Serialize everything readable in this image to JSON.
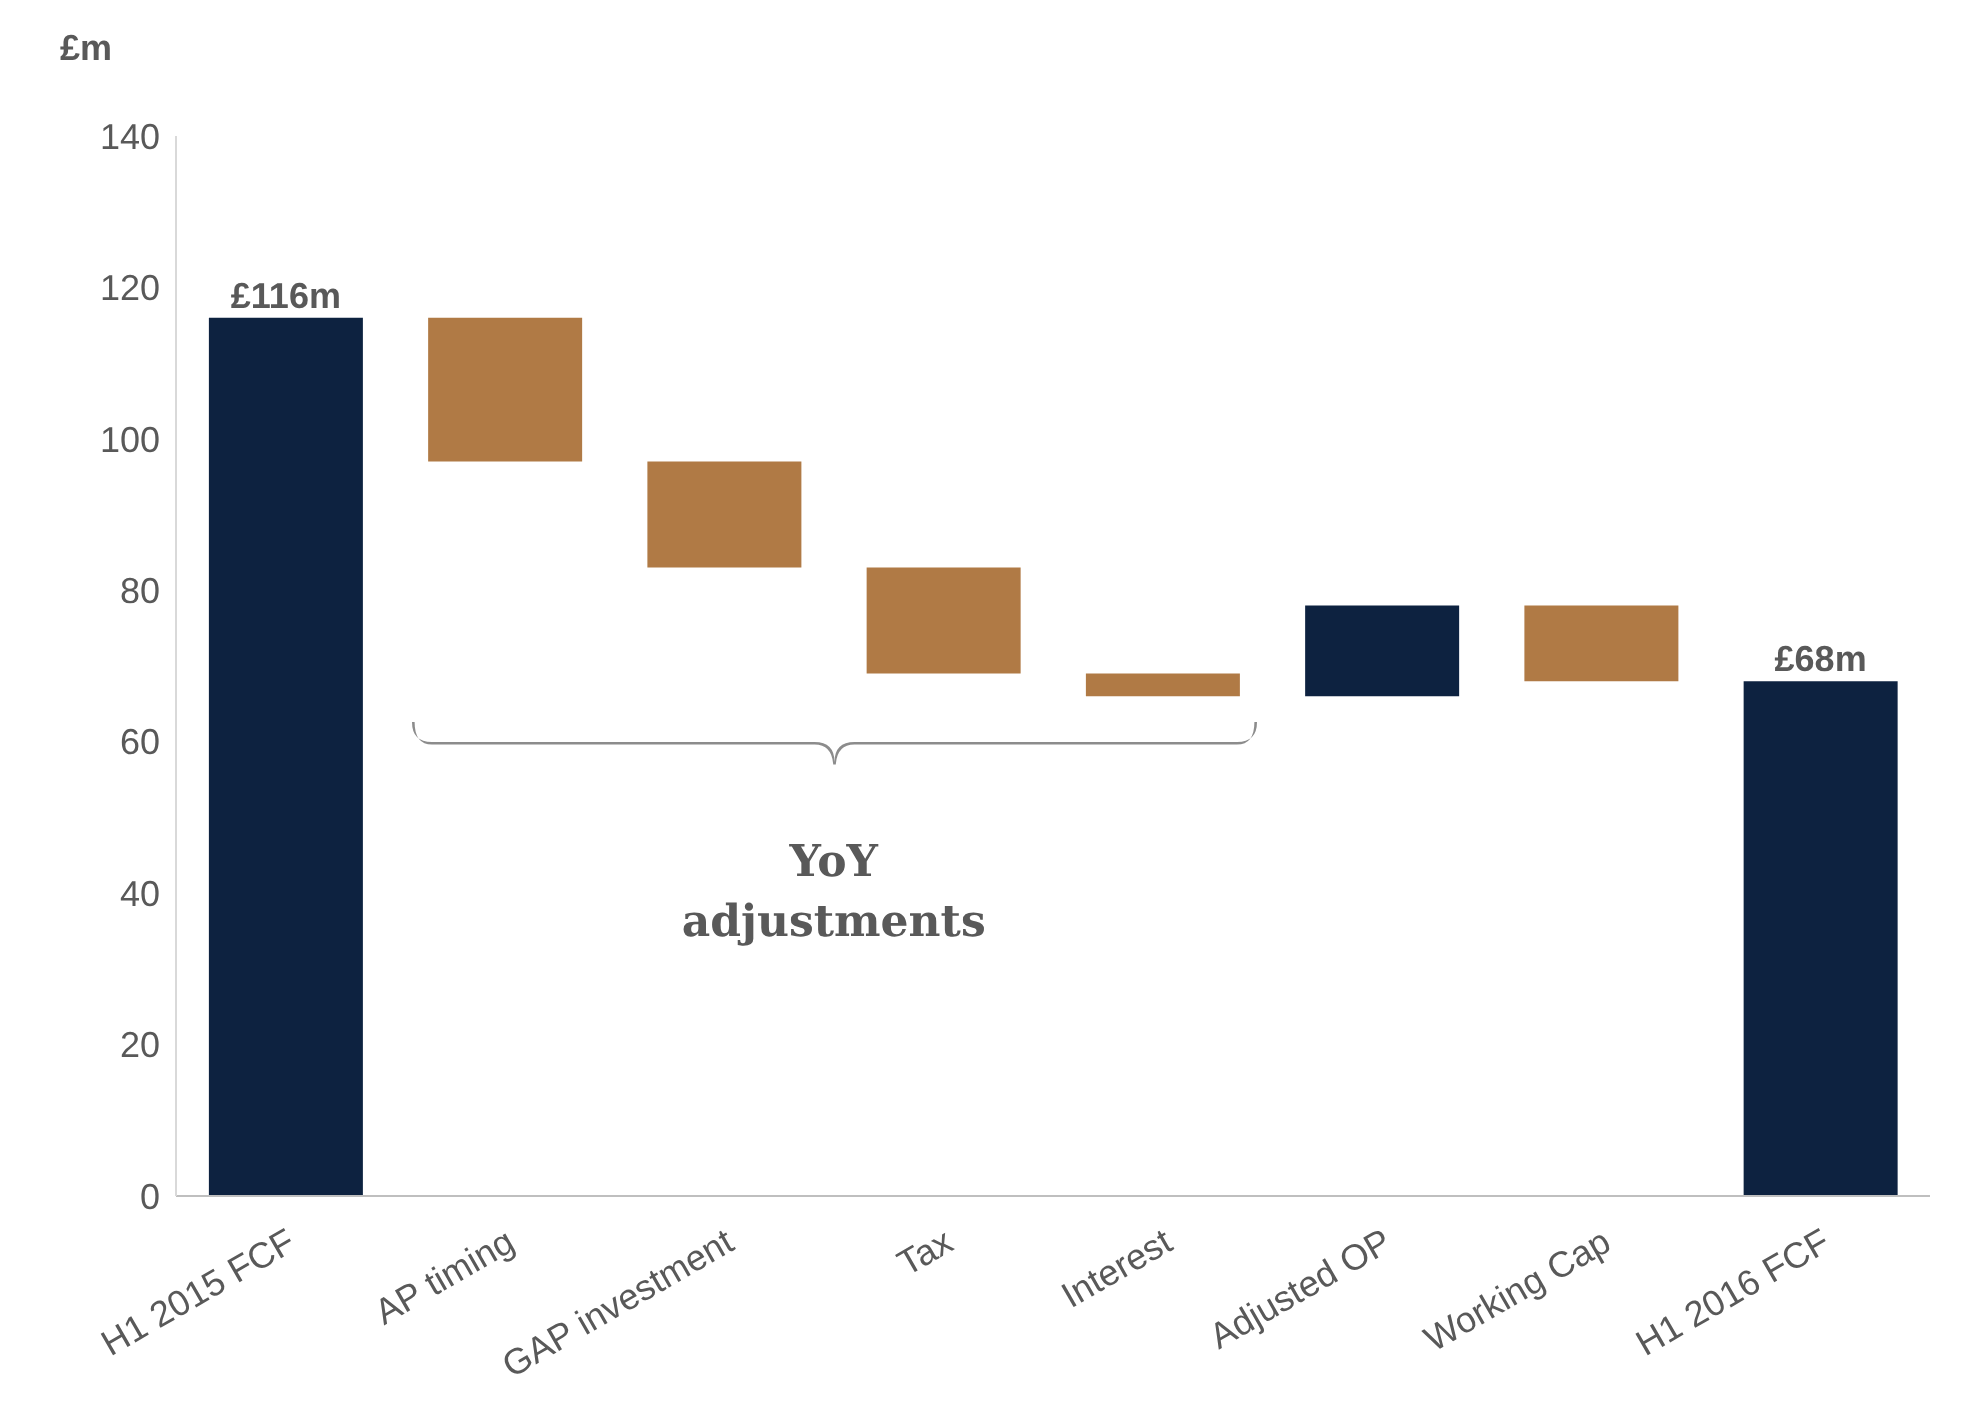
{
  "chart_data": {
    "type": "bar",
    "ylabel": "£m",
    "categories": [
      "H1 2015 FCF",
      "AP timing",
      "GAP investment",
      "Tax",
      "Interest",
      "Adjusted OP",
      "Working Cap",
      "H1 2016 FCF"
    ],
    "values": [
      116,
      19,
      14,
      14,
      3,
      12,
      10,
      68
    ],
    "base": [
      0,
      97,
      83,
      69,
      66,
      66,
      68,
      0
    ],
    "colors": [
      "#0d2240",
      "#b07a45",
      "#b07a45",
      "#b07a45",
      "#b07a45",
      "#0d2240",
      "#b07a45",
      "#0d2240"
    ],
    "value_labels": [
      "£116m",
      null,
      null,
      null,
      null,
      null,
      null,
      "£68m"
    ],
    "ylim": [
      0,
      140
    ],
    "yticks": [
      0,
      20,
      40,
      60,
      80,
      100,
      120,
      140
    ],
    "annotations": [
      "YoY adjustments"
    ]
  }
}
